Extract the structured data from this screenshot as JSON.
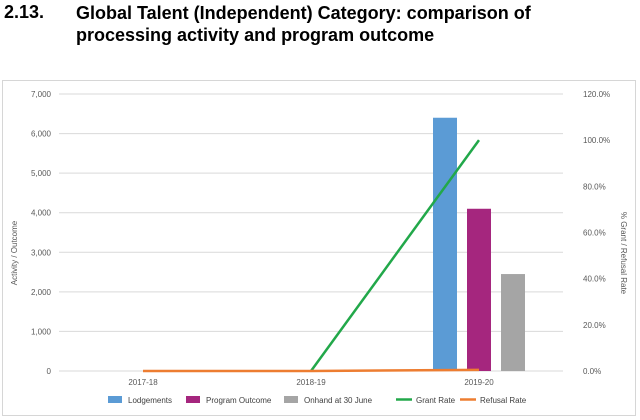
{
  "heading": {
    "number": "2.13.",
    "title": "Global Talent (Independent) Category: comparison of processing activity and program outcome"
  },
  "chart_data": {
    "type": "bar",
    "categories": [
      "2017-18",
      "2018-19",
      "2019-20"
    ],
    "series": [
      {
        "name": "Lodgements",
        "kind": "bar",
        "axis": "left",
        "color": "#5b9bd5",
        "values": [
          0,
          0,
          6400
        ]
      },
      {
        "name": "Program Outcome",
        "kind": "bar",
        "axis": "left",
        "color": "#a5267e",
        "values": [
          0,
          0,
          4100
        ]
      },
      {
        "name": "Onhand at 30 June",
        "kind": "bar",
        "axis": "left",
        "color": "#a5a5a5",
        "values": [
          0,
          0,
          2450
        ]
      },
      {
        "name": "Grant Rate",
        "kind": "line",
        "axis": "right",
        "color": "#22a84a",
        "values": [
          null,
          0,
          100
        ]
      },
      {
        "name": "Refusal Rate",
        "kind": "line",
        "axis": "right",
        "color": "#ed7d31",
        "values": [
          0,
          0,
          0.5
        ]
      }
    ],
    "ylabel": "Activity / Outcome",
    "y2label": "% Grant / Refusal Rate",
    "ylim": [
      0,
      7000
    ],
    "y2lim": [
      0,
      120
    ],
    "yticks": [
      "0",
      "1,000",
      "2,000",
      "3,000",
      "4,000",
      "5,000",
      "6,000",
      "7,000"
    ],
    "y2ticks": [
      "0.0%",
      "20.0%",
      "40.0%",
      "60.0%",
      "80.0%",
      "100.0%",
      "120.0%"
    ],
    "grid": true,
    "legend": "bottom"
  }
}
